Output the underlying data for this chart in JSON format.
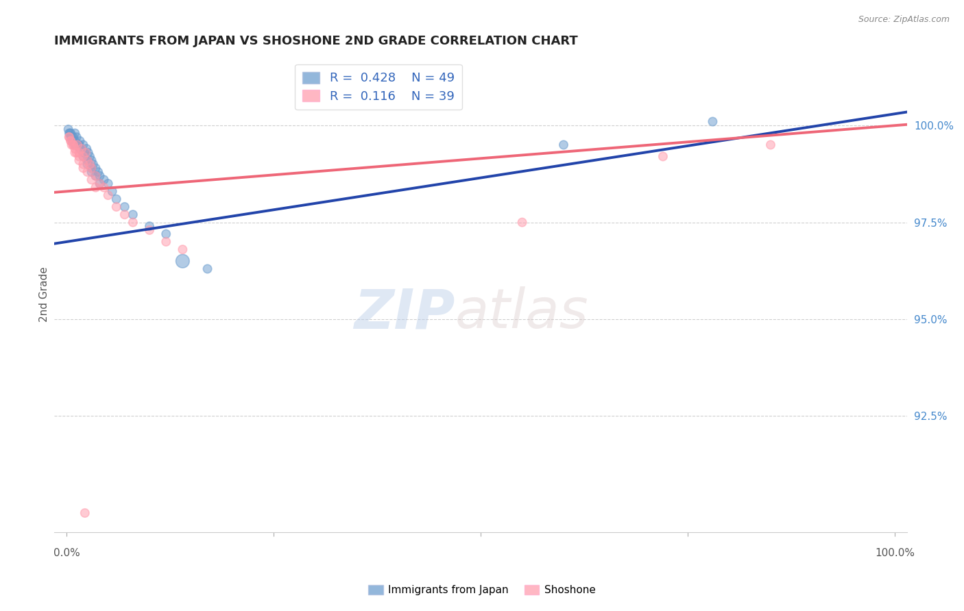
{
  "title": "IMMIGRANTS FROM JAPAN VS SHOSHONE 2ND GRADE CORRELATION CHART",
  "source": "Source: ZipAtlas.com",
  "ylabel": "2nd Grade",
  "ytick_labels": [
    "92.5%",
    "95.0%",
    "97.5%",
    "100.0%"
  ],
  "ytick_values": [
    92.5,
    95.0,
    97.5,
    100.0
  ],
  "ymin": 89.5,
  "ymax": 101.8,
  "xmin": -1.5,
  "xmax": 101.5,
  "legend_r_blue": "0.428",
  "legend_n_blue": 49,
  "legend_r_pink": "0.116",
  "legend_n_pink": 39,
  "legend_label_blue": "Immigrants from Japan",
  "legend_label_pink": "Shoshone",
  "blue_color": "#6699CC",
  "pink_color": "#FF99AA",
  "blue_line_color": "#2244AA",
  "pink_line_color": "#EE6677",
  "blue_x": [
    0.3,
    0.5,
    0.7,
    1.0,
    1.2,
    1.4,
    1.6,
    1.8,
    2.0,
    2.2,
    2.4,
    2.6,
    2.8,
    3.0,
    3.2,
    3.5,
    3.8,
    4.0,
    4.5,
    5.0,
    1.0,
    1.5,
    2.0,
    2.5,
    3.0,
    3.5,
    4.0,
    0.5,
    0.8,
    1.2,
    1.6,
    2.0,
    2.5,
    3.0,
    0.2,
    0.4,
    0.6,
    0.8,
    1.0,
    5.5,
    6.0,
    7.0,
    8.0,
    10.0,
    12.0,
    14.0,
    17.0,
    60.0,
    78.0
  ],
  "blue_y": [
    99.8,
    99.7,
    99.6,
    99.8,
    99.7,
    99.5,
    99.6,
    99.4,
    99.5,
    99.3,
    99.4,
    99.3,
    99.2,
    99.1,
    99.0,
    98.9,
    98.8,
    98.7,
    98.6,
    98.5,
    99.6,
    99.5,
    99.3,
    99.1,
    98.9,
    98.7,
    98.5,
    99.8,
    99.7,
    99.5,
    99.4,
    99.2,
    99.0,
    98.8,
    99.9,
    99.8,
    99.7,
    99.6,
    99.5,
    98.3,
    98.1,
    97.9,
    97.7,
    97.4,
    97.2,
    96.5,
    96.3,
    99.5,
    100.1
  ],
  "blue_sizes": [
    80,
    80,
    80,
    80,
    80,
    80,
    80,
    80,
    80,
    80,
    80,
    80,
    80,
    80,
    80,
    80,
    80,
    80,
    80,
    80,
    80,
    80,
    80,
    80,
    80,
    80,
    80,
    80,
    80,
    80,
    80,
    80,
    80,
    80,
    80,
    80,
    80,
    80,
    80,
    80,
    80,
    80,
    80,
    80,
    80,
    200,
    80,
    80,
    80
  ],
  "pink_x": [
    0.3,
    0.5,
    0.8,
    1.0,
    1.3,
    1.5,
    1.8,
    2.0,
    2.3,
    2.5,
    2.8,
    3.0,
    3.5,
    4.0,
    4.5,
    5.0,
    6.0,
    7.0,
    8.0,
    10.0,
    12.0,
    14.0,
    0.5,
    0.8,
    1.2,
    1.5,
    2.0,
    2.5,
    3.0,
    3.5,
    0.3,
    0.6,
    1.0,
    1.5,
    2.0,
    55.0,
    72.0,
    85.0,
    2.2
  ],
  "pink_y": [
    99.7,
    99.6,
    99.5,
    99.4,
    99.5,
    99.3,
    99.4,
    99.2,
    99.3,
    99.1,
    99.0,
    98.9,
    98.7,
    98.5,
    98.4,
    98.2,
    97.9,
    97.7,
    97.5,
    97.3,
    97.0,
    96.8,
    99.6,
    99.5,
    99.3,
    99.2,
    99.0,
    98.8,
    98.6,
    98.4,
    99.7,
    99.5,
    99.3,
    99.1,
    98.9,
    97.5,
    99.2,
    99.5,
    90.0
  ],
  "pink_sizes": [
    80,
    80,
    80,
    80,
    80,
    80,
    80,
    80,
    80,
    80,
    80,
    80,
    80,
    80,
    80,
    80,
    80,
    80,
    80,
    80,
    80,
    80,
    80,
    80,
    80,
    80,
    80,
    80,
    80,
    80,
    80,
    80,
    80,
    80,
    80,
    80,
    80,
    80,
    80
  ]
}
